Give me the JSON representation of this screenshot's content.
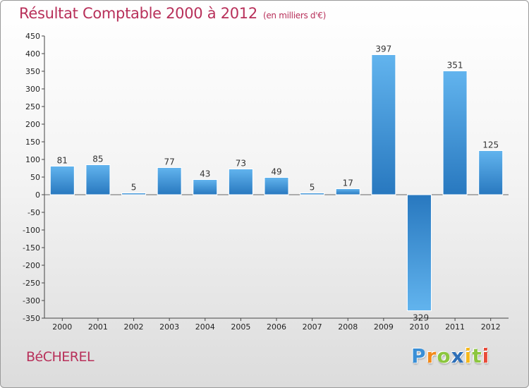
{
  "header": {
    "title": "Résultat Comptable 2000 à 2012",
    "subtitle": "(en milliers d'€)"
  },
  "footer": {
    "place": "BéCHEREL",
    "logo_letters": [
      {
        "ch": "P",
        "color": "#3a8fd6"
      },
      {
        "ch": "r",
        "color": "#f28a1c"
      },
      {
        "ch": "o",
        "color": "#8cc63f"
      },
      {
        "ch": "x",
        "color": "#2e6fb8"
      },
      {
        "ch": "i",
        "color": "#f5b81c"
      },
      {
        "ch": "t",
        "color": "#8cc63f"
      },
      {
        "ch": "i",
        "color": "#e84b3a"
      }
    ]
  },
  "chart_data": {
    "type": "bar",
    "title": "Résultat Comptable 2000 à 2012",
    "subtitle": "(en milliers d'€)",
    "categories": [
      "2000",
      "2001",
      "2002",
      "2003",
      "2004",
      "2005",
      "2006",
      "2007",
      "2008",
      "2009",
      "2010",
      "2011",
      "2012"
    ],
    "values": [
      81,
      85,
      5,
      77,
      43,
      73,
      49,
      5,
      17,
      397,
      -329,
      351,
      125
    ],
    "ylim": [
      -350,
      450
    ],
    "yticks": [
      -350,
      -300,
      -250,
      -200,
      -150,
      -100,
      -50,
      0,
      50,
      100,
      150,
      200,
      250,
      300,
      350,
      400,
      450
    ],
    "grid": false,
    "bar_color": "#4a9fe0"
  }
}
